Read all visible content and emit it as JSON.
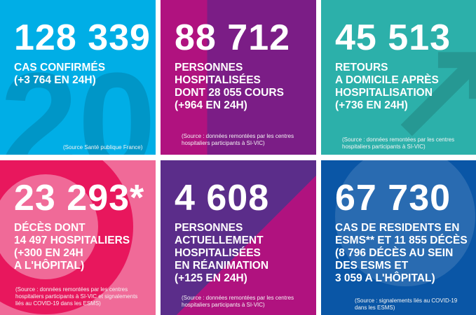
{
  "tiles": [
    {
      "number": "128 339",
      "label": "CAS CONFIRMÉS\n(+3 764 EN 24H)",
      "source": "(Source Santé publique France)",
      "color": "#00aee6"
    },
    {
      "number": "88 712",
      "label": "PERSONNES\nHOSPITALISÉES\nDONT 28 055 COURS\n(+964 EN 24H)",
      "source": "(Source : données remontées par les centres\nhospitaliers participants à SI-VIC)",
      "color": "#9a1a82"
    },
    {
      "number": "45 513",
      "label": "RETOURS\nA DOMICILE APRÈS\nHOSPITALISATION\n(+736 EN 24H)",
      "source": "(Source : données remontées par les centres\nhospitaliers participants à SI-VIC)",
      "color": "#2cb0aa"
    },
    {
      "number": "23 293*",
      "label": "DÉCÈS DONT\n14 497 HOSPITALIERS\n(+300 EN 24H\nA L'HÔPITAL)",
      "source": "(Source : données remontées par les centres\nhospitaliers participants à SI-VIC et signalements\nliés au COVID-19 dans les ESMS)",
      "color": "#e8175d"
    },
    {
      "number": "4 608",
      "label": "PERSONNES\nACTUELLEMENT\nHOSPITALISÉES\nEN RÉANIMATION\n(+125 EN 24H)",
      "source": "(Source : données remontées par les centres\nhospitaliers participants à SI-VIC)",
      "color": "#5b2d8a"
    },
    {
      "number": "67 730",
      "label": "CAS DE RESIDENTS EN\nESMS** ET 11 855 DÉCÈS\n(8 796 DÉCÈS AU SEIN\nDES ESMS ET\n3 059 A L'HÔPITAL)",
      "source": "(Source : signalements liés au COVID-19\ndans les ESMS)",
      "color": "#0a56a6"
    }
  ]
}
